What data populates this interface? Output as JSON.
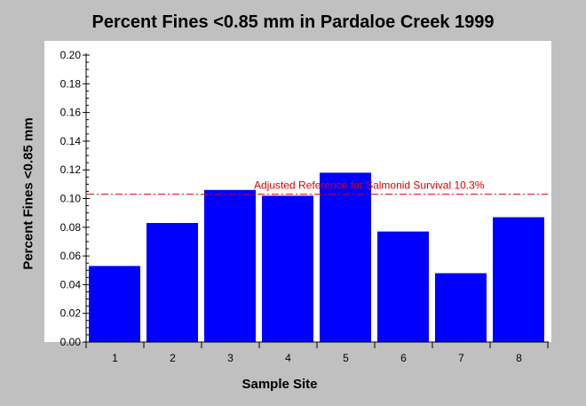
{
  "chart_data": {
    "type": "bar",
    "title": "Percent Fines <0.85 mm in Pardaloe Creek 1999",
    "xlabel": "Sample Site",
    "ylabel": "Percent Fines <0.85 mm",
    "categories": [
      "1",
      "2",
      "3",
      "4",
      "5",
      "6",
      "7",
      "8"
    ],
    "values": [
      0.053,
      0.083,
      0.106,
      0.102,
      0.118,
      0.077,
      0.048,
      0.087
    ],
    "ylim": [
      0,
      0.2
    ],
    "yticks": [
      "0.00",
      "0.02",
      "0.04",
      "0.06",
      "0.08",
      "0.10",
      "0.12",
      "0.14",
      "0.16",
      "0.18",
      "0.20"
    ],
    "reference_line": {
      "value": 0.103,
      "label": "Adjusted Reference for Salmonid Survival 10.3%",
      "style": "dash-dot"
    },
    "colors": {
      "bar": "#0000ff",
      "reference": "#dd0000",
      "plot_background": "#ffffff",
      "background": "#c0c0c0"
    },
    "grid": false,
    "legend": "none"
  }
}
